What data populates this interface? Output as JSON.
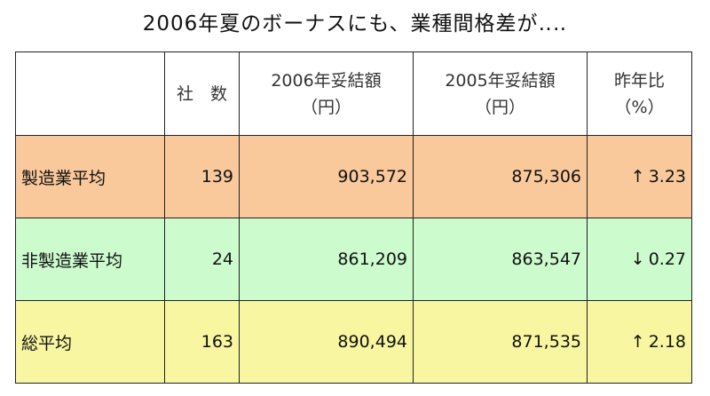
{
  "title": "2006年夏のボーナスにも、業種間格差が‥‥",
  "table": {
    "headers": {
      "companies": "社　数",
      "amount_2006": {
        "line1": "2006年妥結額",
        "line2": "（円）"
      },
      "amount_2005": {
        "line1": "2005年妥結額",
        "line2": "（円）"
      },
      "yoy": {
        "line1": "昨年比",
        "line2": "（%）"
      }
    },
    "rows": [
      {
        "label": "製造業平均",
        "companies": "139",
        "amount_2006": "903,572",
        "amount_2005": "875,306",
        "direction": "↑",
        "yoy": "3.23",
        "color": "#f9c89b"
      },
      {
        "label": "非製造業平均",
        "companies": "24",
        "amount_2006": "861,209",
        "amount_2005": "863,547",
        "direction": "↓",
        "yoy": "0.27",
        "color": "#ccfbcd"
      },
      {
        "label": "総平均",
        "companies": "163",
        "amount_2006": "890,494",
        "amount_2005": "871,535",
        "direction": "↑",
        "yoy": "2.18",
        "color": "#f8f6a0"
      }
    ]
  }
}
